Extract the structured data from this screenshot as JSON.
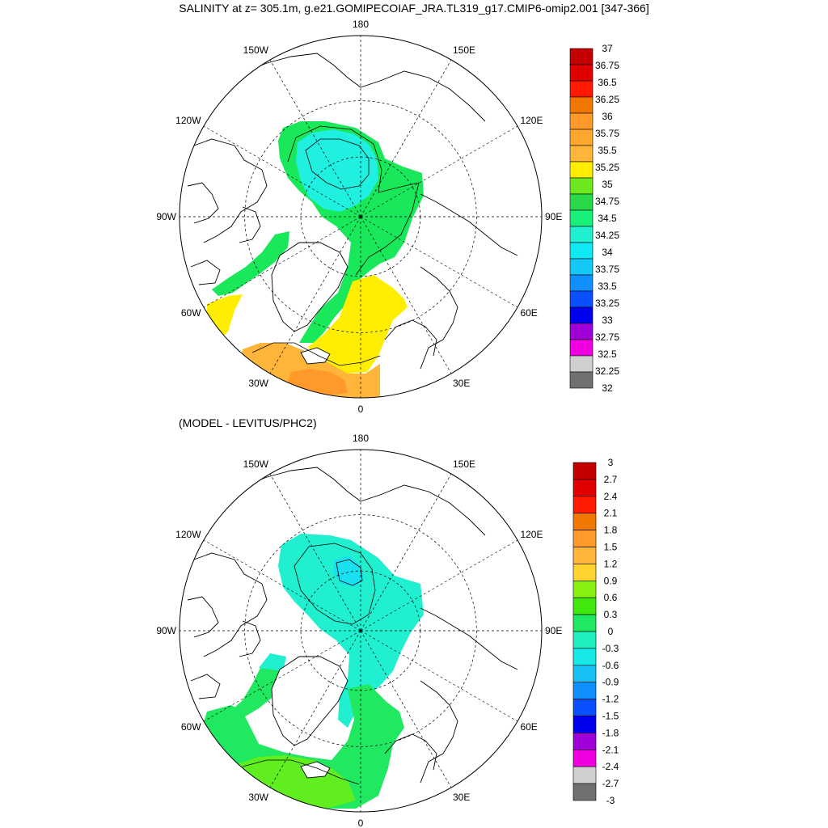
{
  "title": "SALINITY at z= 305.1m, g.e21.GOMIPECOIAF_JRA.TL319_g17.CMIP6-omip2.001 [347-366]",
  "subtitle": "(MODEL - LEVITUS/PHC2)",
  "longitude_labels": [
    "180",
    "150E",
    "120E",
    "90E",
    "60E",
    "30E",
    "0",
    "30W",
    "60W",
    "90W",
    "120W",
    "150W"
  ],
  "panels": [
    {
      "name": "salinity",
      "colorbar": {
        "labels": [
          "37",
          "36.75",
          "36.5",
          "36.25",
          "36",
          "35.75",
          "35.5",
          "35.25",
          "35",
          "34.75",
          "34.5",
          "34.25",
          "34",
          "33.75",
          "33.5",
          "33.25",
          "33",
          "32.75",
          "32.5",
          "32.25",
          "32"
        ],
        "colors": [
          "#c40000",
          "#e00000",
          "#ff1a00",
          "#f07800",
          "#ff9a2a",
          "#ffa62e",
          "#ffb43a",
          "#ffee00",
          "#6ee81e",
          "#2ad84a",
          "#18f07a",
          "#20f0d0",
          "#10e8f4",
          "#14c8f8",
          "#1090ff",
          "#0a50ff",
          "#0000f0",
          "#a000d8",
          "#f000e0",
          "#d0d0d0",
          "#707070"
        ]
      }
    },
    {
      "name": "difference",
      "colorbar": {
        "labels": [
          "3",
          "2.7",
          "2.4",
          "2.1",
          "1.8",
          "1.5",
          "1.2",
          "0.9",
          "0.6",
          "0.3",
          "0",
          "-0.3",
          "-0.6",
          "-0.9",
          "-1.2",
          "-1.5",
          "-1.8",
          "-2.1",
          "-2.4",
          "-2.7",
          "-3"
        ],
        "colors": [
          "#c40000",
          "#e00000",
          "#ff1a00",
          "#f07800",
          "#ff9a2a",
          "#ffb43a",
          "#ffd430",
          "#88f010",
          "#40e810",
          "#20e860",
          "#20f0c0",
          "#18e8e8",
          "#18c0f8",
          "#1090ff",
          "#0a50ff",
          "#0000f0",
          "#a000d8",
          "#f000e0",
          "#d0d0d0",
          "#707070"
        ]
      }
    }
  ]
}
